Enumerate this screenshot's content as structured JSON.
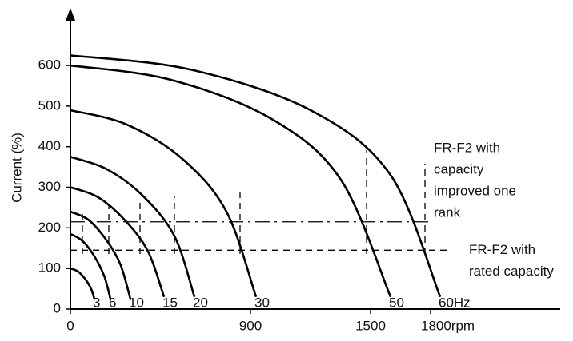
{
  "chart_data": {
    "type": "line",
    "y_label": "Current (%)",
    "xlim": [
      0,
      1880
    ],
    "ylim": [
      0,
      730
    ],
    "xticks": [
      0,
      900,
      1500,
      {
        "value": 1800,
        "label": "1800rpm"
      }
    ],
    "yticks": [
      0,
      100,
      200,
      300,
      400,
      500,
      600
    ],
    "color": "#000000",
    "series": [
      {
        "name": "3",
        "x": [
          0,
          40,
          80,
          105,
          120
        ],
        "values": [
          100,
          92,
          70,
          48,
          25
        ]
      },
      {
        "name": "6",
        "x": [
          0,
          60,
          120,
          170,
          200
        ],
        "values": [
          185,
          168,
          130,
          80,
          25
        ]
      },
      {
        "name": "10",
        "x": [
          0,
          90,
          180,
          250,
          300
        ],
        "values": [
          240,
          220,
          170,
          110,
          25
        ]
      },
      {
        "name": "15",
        "x": [
          0,
          140,
          280,
          390,
          468
        ],
        "values": [
          300,
          275,
          215,
          140,
          30
        ]
      },
      {
        "name": "20",
        "x": [
          0,
          180,
          360,
          520,
          620
        ],
        "values": [
          375,
          345,
          280,
          180,
          30
        ]
      },
      {
        "name": "30",
        "x": [
          0,
          280,
          560,
          780,
          928
        ],
        "values": [
          490,
          455,
          370,
          240,
          30
        ]
      },
      {
        "name": "50",
        "x": [
          0,
          500,
          1000,
          1350,
          1600
        ],
        "values": [
          600,
          565,
          470,
          320,
          30
        ]
      },
      {
        "name": "60Hz",
        "x": [
          0,
          600,
          1200,
          1600,
          1848
        ],
        "values": [
          625,
          590,
          490,
          330,
          30
        ]
      }
    ],
    "reference_lines": [
      {
        "y": 215,
        "lines": [
          "FR-F2 with",
          "capacity",
          "improved one",
          "rank"
        ]
      },
      {
        "y": 145,
        "lines": [
          "FR-F2 with",
          "rated capacity"
        ]
      }
    ]
  }
}
